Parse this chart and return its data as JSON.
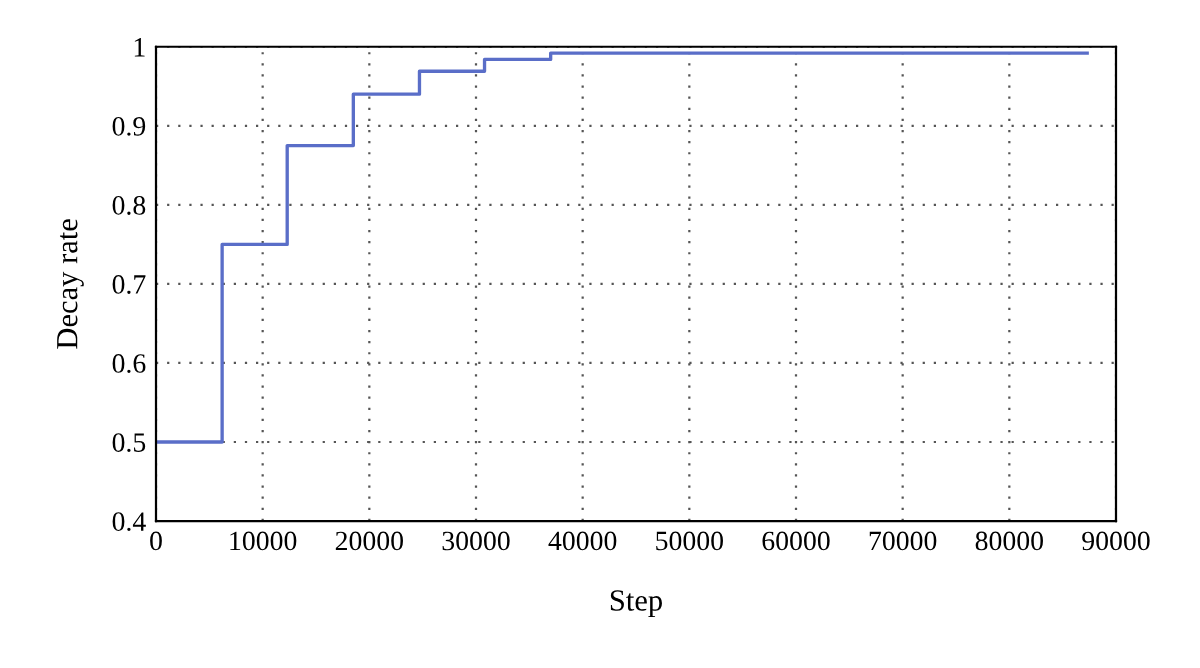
{
  "chart_data": {
    "type": "step",
    "xlabel": "Step",
    "ylabel": "Decay rate",
    "x": [
      0,
      6200,
      12300,
      18500,
      24700,
      30800,
      37000,
      87300
    ],
    "values": [
      0.5,
      0.75,
      0.875,
      0.94,
      0.969,
      0.984,
      0.992,
      0.992
    ],
    "color": "#5a6ec8",
    "xlim": [
      0,
      90000
    ],
    "xticks": [
      0,
      10000,
      20000,
      30000,
      40000,
      50000,
      60000,
      70000,
      80000,
      90000
    ],
    "ylim": [
      0.4,
      1
    ],
    "yticks": [
      0.4,
      0.5,
      0.6,
      0.7,
      0.8,
      0.9,
      1
    ],
    "grid": true,
    "line_style": "solid"
  }
}
